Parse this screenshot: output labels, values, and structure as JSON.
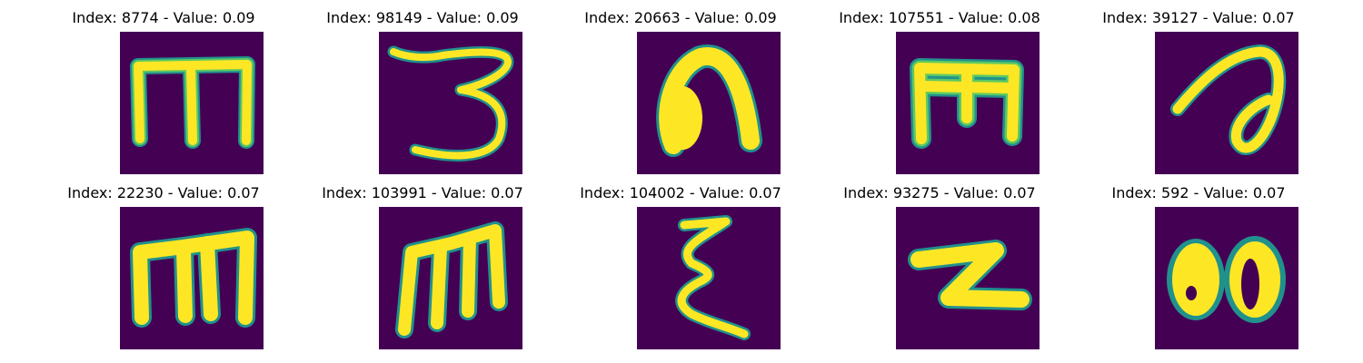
{
  "colors": {
    "background": "#440154",
    "inner": "#fde725",
    "mid": "#5ec962",
    "edge": "#21918c"
  },
  "panels": [
    {
      "title": "Index: 8774 - Value: 0.09",
      "glyph": "m"
    },
    {
      "title": "Index: 98149 - Value: 0.09",
      "glyph": "3"
    },
    {
      "title": "Index: 20663 - Value: 0.09",
      "glyph": "n"
    },
    {
      "title": "Index: 107551 - Value: 0.08",
      "glyph": "m"
    },
    {
      "title": "Index: 39127 - Value: 0.07",
      "glyph": "a"
    },
    {
      "title": "Index: 22230 - Value: 0.07",
      "glyph": "m"
    },
    {
      "title": "Index: 103991 - Value: 0.07",
      "glyph": "m"
    },
    {
      "title": "Index: 104002 - Value: 0.07",
      "glyph": "ξ"
    },
    {
      "title": "Index: 93275 - Value: 0.07",
      "glyph": "z"
    },
    {
      "title": "Index: 592 - Value: 0.07",
      "glyph": "8"
    }
  ]
}
